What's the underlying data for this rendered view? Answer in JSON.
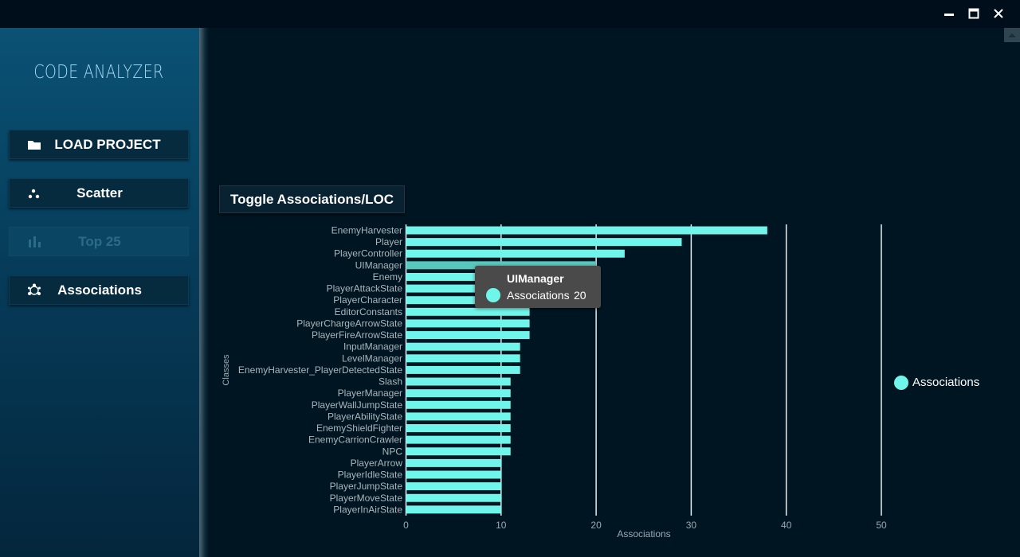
{
  "app": {
    "title": "CODE ANALYZER",
    "accent_color": "#6ff5e9"
  },
  "window_controls": {
    "minimize_icon": "minimize-icon",
    "maximize_icon": "maximize-icon",
    "close_icon": "close-icon"
  },
  "sidebar": {
    "items": [
      {
        "label": "LOAD PROJECT",
        "icon": "folder-icon",
        "enabled": true
      },
      {
        "label": "Scatter",
        "icon": "scatter-icon",
        "enabled": true
      },
      {
        "label": "Top 25",
        "icon": "bar-chart-icon",
        "enabled": false
      },
      {
        "label": "Associations",
        "icon": "graph-icon",
        "enabled": true
      }
    ]
  },
  "main": {
    "toggle_label": "Toggle Associations/LOC"
  },
  "tooltip": {
    "title": "UIManager",
    "series": "Associations",
    "value": "20"
  },
  "chart_data": {
    "type": "bar",
    "orientation": "horizontal",
    "xlabel": "Associations",
    "ylabel": "Classes",
    "xlim": [
      0,
      55
    ],
    "xticks": [
      0,
      10,
      20,
      30,
      40,
      50
    ],
    "grid": true,
    "legend_position": "right",
    "highlighted_category": "UIManager",
    "bar_color": "#6ff5e9",
    "categories": [
      "EnemyHarvester",
      "Player",
      "PlayerController",
      "UIManager",
      "Enemy",
      "PlayerAttackState",
      "PlayerCharacter",
      "EditorConstants",
      "PlayerChargeArrowState",
      "PlayerFireArrowState",
      "InputManager",
      "LevelManager",
      "EnemyHarvester_PlayerDetectedState",
      "Slash",
      "PlayerManager",
      "PlayerWallJumpState",
      "PlayerAbilityState",
      "EnemyShieldFighter",
      "EnemyCarrionCrawler",
      "NPC",
      "PlayerArrow",
      "PlayerIdleState",
      "PlayerJumpState",
      "PlayerMoveState",
      "PlayerInAirState"
    ],
    "series": [
      {
        "name": "Associations",
        "values": [
          38,
          29,
          23,
          20,
          16,
          16,
          16,
          13,
          13,
          13,
          12,
          12,
          12,
          11,
          11,
          11,
          11,
          11,
          11,
          11,
          10,
          10,
          10,
          10,
          10
        ]
      }
    ]
  }
}
